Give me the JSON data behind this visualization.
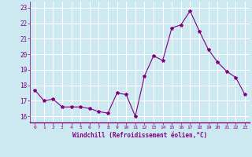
{
  "x": [
    0,
    1,
    2,
    3,
    4,
    5,
    6,
    7,
    8,
    9,
    10,
    11,
    12,
    13,
    14,
    15,
    16,
    17,
    18,
    19,
    20,
    21,
    22,
    23
  ],
  "y": [
    17.7,
    17.0,
    17.1,
    16.6,
    16.6,
    16.6,
    16.5,
    16.3,
    16.2,
    17.5,
    17.4,
    16.0,
    18.6,
    19.9,
    19.6,
    21.7,
    21.9,
    22.8,
    21.5,
    20.3,
    19.5,
    18.9,
    18.5,
    17.4
  ],
  "line_color": "#800080",
  "marker": "*",
  "marker_size": 3,
  "bg_color": "#cce8f0",
  "grid_color": "#ffffff",
  "xlabel": "Windchill (Refroidissement éolien,°C)",
  "xlabel_color": "#800080",
  "tick_color": "#800080",
  "ylim": [
    15.6,
    23.4
  ],
  "yticks": [
    16,
    17,
    18,
    19,
    20,
    21,
    22,
    23
  ],
  "xlim": [
    -0.5,
    23.5
  ],
  "xticks": [
    0,
    1,
    2,
    3,
    4,
    5,
    6,
    7,
    8,
    9,
    10,
    11,
    12,
    13,
    14,
    15,
    16,
    17,
    18,
    19,
    20,
    21,
    22,
    23
  ],
  "figsize": [
    3.2,
    2.0
  ],
  "dpi": 100
}
